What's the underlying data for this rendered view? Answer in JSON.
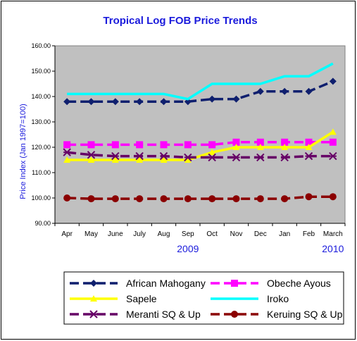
{
  "chart_data": {
    "type": "line",
    "title": "Tropical Log FOB Price Trends",
    "ylabel": "Price Index (Jan 1997=100)",
    "xlabel": "",
    "ylim": [
      90,
      160
    ],
    "yticks": [
      90,
      100,
      110,
      120,
      130,
      140,
      150,
      160
    ],
    "ytick_labels": [
      "90.00",
      "100.00",
      "110.00",
      "120.00",
      "130.00",
      "140.00",
      "150.00",
      "160.00"
    ],
    "categories": [
      "Apr",
      "May",
      "June",
      "July",
      "Aug",
      "Sep",
      "Oct",
      "Nov",
      "Dec",
      "Jan",
      "Feb",
      "March"
    ],
    "year_labels": [
      {
        "text": "2009",
        "category": "Sep"
      },
      {
        "text": "2010",
        "category": "March"
      }
    ],
    "grid": false,
    "plot_background": "#c0c0c0",
    "legend_position": "bottom",
    "series": [
      {
        "name": "African Mahogany",
        "color": "#0f1f6e",
        "marker": "diamond",
        "dashed": true,
        "values": [
          138,
          138,
          138,
          138,
          138,
          138,
          139,
          139,
          142,
          142,
          142,
          146
        ]
      },
      {
        "name": "Obeche Ayous",
        "color": "#ff00ff",
        "marker": "square",
        "dashed": true,
        "values": [
          121,
          121,
          121,
          121,
          121,
          121,
          121,
          122,
          122,
          122,
          122,
          122
        ]
      },
      {
        "name": "Sapele",
        "color": "#ffff00",
        "marker": "triangle",
        "dashed": false,
        "values": [
          115,
          115,
          115,
          115,
          115,
          115,
          118,
          120,
          120,
          120,
          120,
          126
        ]
      },
      {
        "name": "Iroko",
        "color": "#00ffff",
        "marker": "none",
        "dashed": false,
        "values": [
          141,
          141,
          141,
          141,
          141,
          139,
          145,
          145,
          145,
          148,
          148,
          153
        ]
      },
      {
        "name": "Meranti SQ & Up",
        "color": "#660066",
        "marker": "asterisk",
        "dashed": true,
        "values": [
          118,
          117,
          116.5,
          116.5,
          116.5,
          116,
          116,
          116,
          116,
          116,
          116.5,
          116.5
        ]
      },
      {
        "name": "Keruing SQ & Up",
        "color": "#8b0000",
        "marker": "circle",
        "dashed": true,
        "values": [
          100,
          99.7,
          99.7,
          99.7,
          99.7,
          99.7,
          99.7,
          99.7,
          99.7,
          99.7,
          100.5,
          100.5
        ]
      }
    ]
  }
}
